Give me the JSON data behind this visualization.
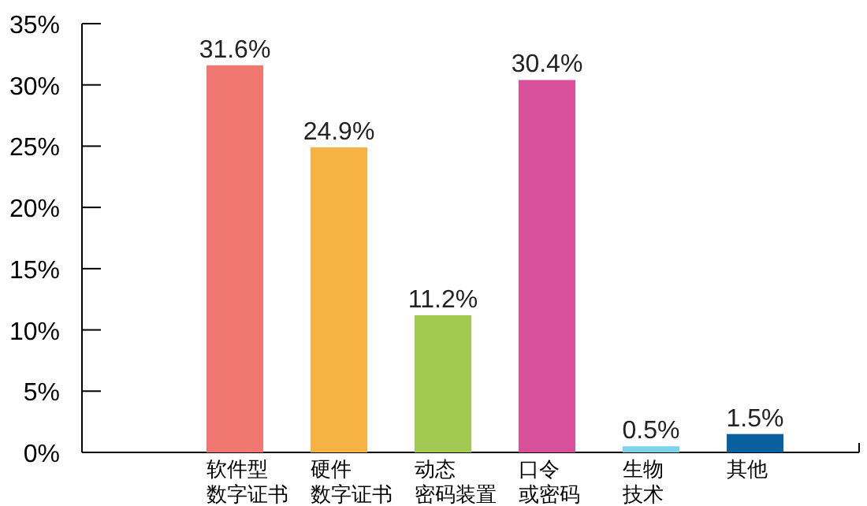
{
  "chart_data": {
    "type": "bar",
    "categories": [
      "软件型数字证书",
      "硬件数字证书",
      "动态密码装置",
      "口令或密码",
      "生物技术",
      "其他"
    ],
    "values": [
      31.6,
      24.9,
      11.2,
      30.4,
      0.5,
      1.5
    ],
    "colors": [
      "#f07870",
      "#f6b244",
      "#a4c952",
      "#d9509a",
      "#7dd3ea",
      "#0a5f9e"
    ],
    "value_labels": [
      "31.6%",
      "24.9%",
      "11.2%",
      "30.4%",
      "0.5%",
      "1.5%"
    ],
    "ylim": [
      0,
      35
    ],
    "yticks": [
      {
        "value": 0,
        "label": "0%"
      },
      {
        "value": 5,
        "label": "5%"
      },
      {
        "value": 10,
        "label": "10%"
      },
      {
        "value": 15,
        "label": "15%"
      },
      {
        "value": 20,
        "label": "20%"
      },
      {
        "value": 25,
        "label": "25%"
      },
      {
        "value": 30,
        "label": "30%"
      },
      {
        "value": 35,
        "label": "35%"
      }
    ],
    "grid": false
  }
}
